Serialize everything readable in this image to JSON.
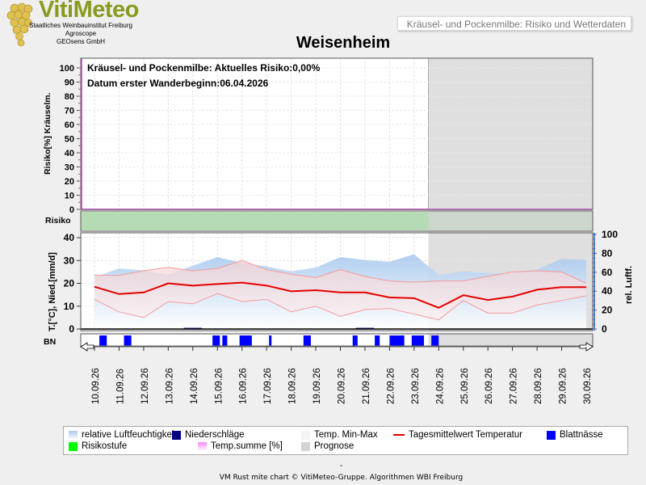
{
  "header": {
    "logo_text": "VitiMeteo",
    "institute_lines": [
      "Staatliches Weinbauinstitut Freiburg",
      "Agroscope",
      "GEOsens GmbH"
    ],
    "subtitle": "Kräusel- und Pockenmilbe: Risiko und Wetterdaten"
  },
  "page_title": "Weisenheim",
  "info": {
    "risk_text": "Kräusel- und Pockenmilbe: Aktuelles Risiko:0,00%",
    "date_text": "Datum  erster Wanderbeginn:06.04.2026"
  },
  "colors": {
    "humidity": "#a9c9ee",
    "precip": "#000080",
    "temp_minmax": "#f2b6b6",
    "temp_mean": "#e60000",
    "leaf_wet": "#0000ff",
    "risk_level": "#00ff00",
    "risk_band": "#b5dbb5",
    "temp_sum": "#ff88ff",
    "forecast": "#d4d4d4"
  },
  "chart_data": [
    {
      "type": "line",
      "ylabel": "Risiko[%] Kräuselm.",
      "ylim": [
        0,
        100
      ],
      "yticks": [
        0,
        10,
        20,
        30,
        40,
        50,
        60,
        70,
        80,
        90,
        100
      ],
      "series": [
        {
          "name": "Temp.summe [%]",
          "values": [
            0,
            0,
            0,
            0,
            0,
            0,
            0,
            0,
            0,
            0,
            0,
            0,
            0,
            0,
            0,
            0,
            0,
            0,
            0,
            0,
            0
          ]
        }
      ]
    },
    {
      "type": "area",
      "ylabel": "Risiko",
      "series": [
        {
          "name": "Risikostufe",
          "level": "low"
        }
      ]
    },
    {
      "type": "line",
      "ylabel_left": "T.[°C], Nied.[mm/d]",
      "ylabel_right": "rel. Luftf.",
      "ylim_left": [
        0,
        40
      ],
      "yticks_left": [
        0,
        10,
        20,
        30,
        40
      ],
      "ylim_right": [
        0,
        100
      ],
      "yticks_right": [
        0,
        20,
        40,
        60,
        80,
        100
      ],
      "x": [
        "10.09.26",
        "11.09.26",
        "12.09.26",
        "13.09.26",
        "14.09.26",
        "15.09.26",
        "16.09.26",
        "17.09.26",
        "18.09.26",
        "19.09.26",
        "20.09.26",
        "21.09.26",
        "22.09.26",
        "23.09.26",
        "24.09.26",
        "25.09.26",
        "26.09.26",
        "27.09.26",
        "28.09.26",
        "29.09.26",
        "30.09.26"
      ],
      "forecast_from": "23.09.26",
      "series": [
        {
          "name": "relative Luftfeuchtigkeit",
          "values": [
            55,
            64,
            62,
            57,
            67,
            76,
            70,
            66,
            61,
            65,
            76,
            73,
            71,
            79,
            57,
            61,
            59,
            59,
            63,
            74,
            73
          ]
        },
        {
          "name": "Tagesmittelwert Temperatur",
          "values": [
            18.5,
            15.3,
            16.0,
            20.0,
            19.0,
            19.7,
            20.3,
            19.0,
            16.5,
            17.0,
            16.0,
            16.0,
            13.8,
            13.5,
            9.3,
            14.8,
            12.7,
            14.2,
            17.2,
            18.3,
            18.3
          ]
        },
        {
          "name": "Temp. Max",
          "values": [
            23.5,
            23.5,
            25.5,
            27.0,
            25.5,
            26.5,
            30.0,
            26.0,
            24.0,
            22.5,
            26.0,
            23.0,
            21.0,
            20.5,
            21.0,
            21.0,
            23.0,
            25.0,
            25.5,
            25.0,
            20.0
          ]
        },
        {
          "name": "Temp. Min",
          "values": [
            13.0,
            7.5,
            5.0,
            12.0,
            11.0,
            15.5,
            12.0,
            13.0,
            7.5,
            10.0,
            5.5,
            8.5,
            9.0,
            6.5,
            4.0,
            12.5,
            7.0,
            7.0,
            10.5,
            12.5,
            14.5
          ]
        },
        {
          "name": "Niederschläge",
          "values": [
            0,
            0,
            0,
            0,
            0.5,
            0,
            0,
            0,
            0,
            0,
            0,
            0.5,
            0,
            0,
            0,
            0,
            0,
            0,
            0,
            0,
            0
          ]
        }
      ]
    },
    {
      "type": "bar",
      "ylabel": "BN",
      "series": [
        {
          "name": "Blattnässe",
          "values": [
            [
              0.2,
              0.5
            ],
            [
              1.2,
              1.5
            ],
            [
              4.8,
              5.1
            ],
            [
              5.2,
              5.4
            ],
            [
              5.9,
              6.4
            ],
            [
              7.1,
              7.2
            ],
            [
              8.5,
              8.8
            ],
            [
              10.5,
              10.7
            ],
            [
              11.4,
              11.6
            ],
            [
              12.0,
              12.6
            ],
            [
              12.9,
              13.4
            ],
            [
              13.7,
              14.0
            ]
          ]
        }
      ]
    }
  ],
  "legend": [
    {
      "label": "relative Luftfeuchtigkeit",
      "kind": "gradient",
      "color": "#a9c9ee"
    },
    {
      "label": "Niederschläge",
      "kind": "box",
      "color": "#000080"
    },
    {
      "label": "Temp. Min-Max",
      "kind": "box",
      "color": "#f4f4f4"
    },
    {
      "label": "Tagesmittelwert Temperatur",
      "kind": "line",
      "color": "#e60000"
    },
    {
      "label": "Blattnässe",
      "kind": "box",
      "color": "#0000ff"
    },
    {
      "label": "Risikostufe",
      "kind": "box",
      "color": "#00ff00"
    },
    {
      "label": "Temp.summe [%]",
      "kind": "gradient",
      "color": "#ff88ff"
    },
    {
      "label": "Prognose",
      "kind": "box",
      "color": "#d4d4d4"
    }
  ],
  "footer": {
    "dash": "-",
    "text": "VM Rust mite chart © VitiMeteo-Gruppe. Algorithmen WBI Freiburg"
  }
}
